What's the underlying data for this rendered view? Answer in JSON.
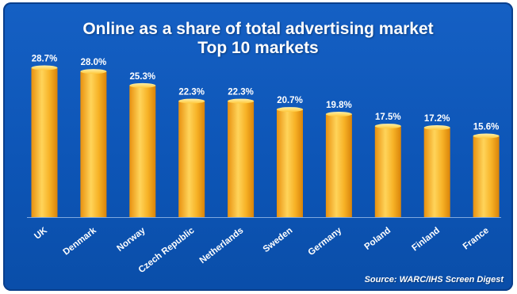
{
  "chart_data": {
    "type": "bar",
    "title": "Online as a share of total advertising market",
    "subtitle": "Top 10 markets",
    "categories": [
      "UK",
      "Denmark",
      "Norway",
      "Czech Republic",
      "Netherlands",
      "Sweden",
      "Germany",
      "Poland",
      "Finland",
      "France"
    ],
    "values": [
      28.7,
      28.0,
      25.3,
      22.3,
      22.3,
      20.7,
      19.8,
      17.5,
      17.2,
      15.6
    ],
    "value_labels": [
      "28.7%",
      "28.0%",
      "25.3%",
      "22.3%",
      "22.3%",
      "20.7%",
      "19.8%",
      "17.5%",
      "17.2%",
      "15.6%"
    ],
    "unit": "%",
    "ylim": [
      0,
      30
    ],
    "grid": false,
    "legend": "none",
    "source": "Source: WARC/IHS Screen Digest",
    "colors": {
      "background": "#0d55b6",
      "bar": "#f5a91f",
      "bar_highlight": "#ffd45a",
      "text": "#ffffff"
    }
  }
}
